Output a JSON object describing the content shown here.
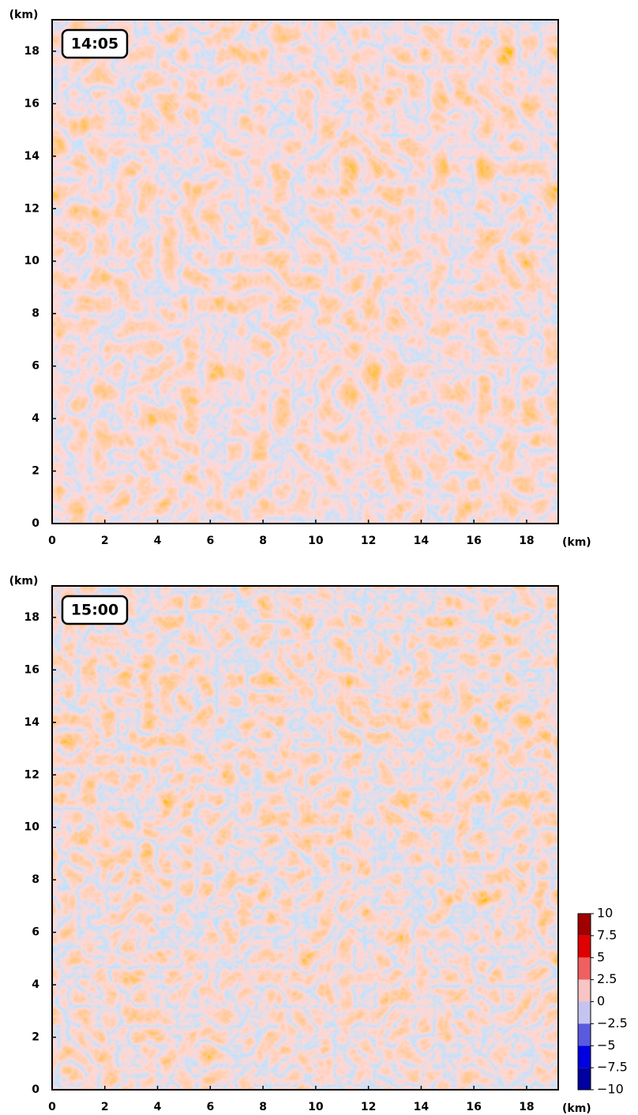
{
  "chart_data": [
    {
      "type": "heatmap",
      "label": "14:05",
      "x_label": "(km)",
      "y_label": "(km)",
      "xlim": [
        0,
        19.2
      ],
      "ylim": [
        0,
        19.2
      ],
      "xticks": [
        0,
        2,
        4,
        6,
        8,
        10,
        12,
        14,
        16,
        18
      ],
      "yticks": [
        0,
        2,
        4,
        6,
        8,
        10,
        12,
        14,
        16,
        18
      ]
    },
    {
      "type": "heatmap",
      "label": "15:00",
      "x_label": "(km)",
      "y_label": "(km)",
      "xlim": [
        0,
        19.2
      ],
      "ylim": [
        0,
        19.2
      ],
      "xticks": [
        0,
        2,
        4,
        6,
        8,
        10,
        12,
        14,
        16,
        18
      ],
      "yticks": [
        0,
        2,
        4,
        6,
        8,
        10,
        12,
        14,
        16,
        18
      ],
      "colorbar": {
        "ticks": [
          10,
          7.5,
          5,
          2.5,
          0,
          {
            "value": -2.5,
            "label": "−2.5"
          },
          {
            "value": -5,
            "label": "−5"
          },
          {
            "value": -7.5,
            "label": "−7.5"
          },
          {
            "value": -10,
            "label": "−10"
          }
        ],
        "colors": [
          "#a00000",
          "#e00000",
          "#f06060",
          "#f8c4c4",
          "#c4c4f0",
          "#5a5ae0",
          "#0000e0",
          "#0000a0"
        ]
      }
    }
  ]
}
